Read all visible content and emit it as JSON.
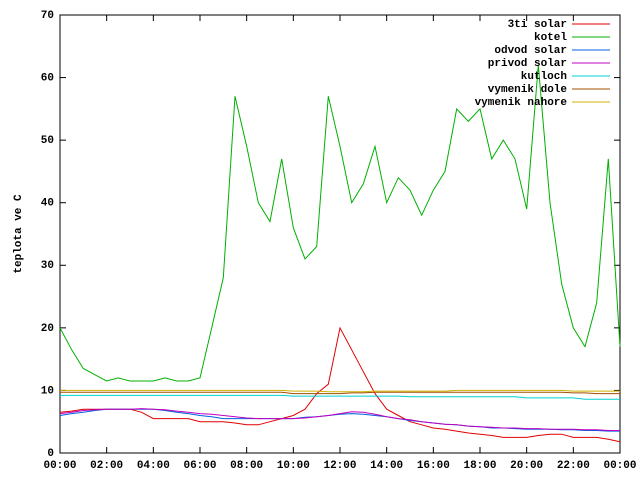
{
  "chart_data": {
    "type": "line",
    "y_label": "teplota ve C",
    "x": [
      0,
      0.5,
      1,
      1.5,
      2,
      2.5,
      3,
      3.5,
      4,
      4.5,
      5,
      5.5,
      6,
      6.5,
      7,
      7.5,
      8,
      8.5,
      9,
      9.5,
      10,
      10.5,
      11,
      11.5,
      12,
      12.5,
      13,
      13.5,
      14,
      14.5,
      15,
      15.5,
      16,
      16.5,
      17,
      17.5,
      18,
      18.5,
      19,
      19.5,
      20,
      20.5,
      21,
      21.5,
      22,
      22.5,
      23,
      23.5,
      24
    ],
    "xlim": [
      0,
      24
    ],
    "xticks": [
      {
        "value": 0,
        "label": "00:00"
      },
      {
        "value": 2,
        "label": "02:00"
      },
      {
        "value": 4,
        "label": "04:00"
      },
      {
        "value": 6,
        "label": "06:00"
      },
      {
        "value": 8,
        "label": "08:00"
      },
      {
        "value": 10,
        "label": "10:00"
      },
      {
        "value": 12,
        "label": "12:00"
      },
      {
        "value": 14,
        "label": "14:00"
      },
      {
        "value": 16,
        "label": "16:00"
      },
      {
        "value": 18,
        "label": "18:00"
      },
      {
        "value": 20,
        "label": "20:00"
      },
      {
        "value": 22,
        "label": "22:00"
      },
      {
        "value": 24,
        "label": "00:00"
      }
    ],
    "ylim": [
      0,
      70
    ],
    "yticks": [
      0,
      10,
      20,
      30,
      40,
      50,
      60,
      70
    ],
    "legend": "top-right",
    "series": [
      {
        "name": "3ti solar",
        "color": "#e00000",
        "values": [
          6.5,
          6.7,
          7,
          7,
          7,
          7,
          7,
          6.5,
          5.5,
          5.5,
          5.5,
          5.5,
          5,
          5,
          5,
          4.8,
          4.5,
          4.5,
          5,
          5.5,
          6,
          7,
          9.5,
          11,
          20,
          16.5,
          13,
          9.5,
          7,
          6,
          5,
          4.5,
          4,
          3.8,
          3.5,
          3.2,
          3,
          2.8,
          2.5,
          2.5,
          2.5,
          2.8,
          3,
          3,
          2.5,
          2.5,
          2.5,
          2.2,
          1.8
        ]
      },
      {
        "name": "kotel",
        "color": "#00b000",
        "values": [
          20,
          16.5,
          13.5,
          12.5,
          11.5,
          12,
          11.5,
          11.5,
          11.5,
          12,
          11.5,
          11.5,
          12,
          20,
          28,
          57,
          49,
          40,
          37,
          47,
          36,
          31,
          33,
          57,
          49,
          40,
          43,
          49,
          40,
          44,
          42,
          38,
          42,
          45,
          55,
          53,
          55,
          47,
          50,
          47,
          39,
          62,
          40,
          27,
          20,
          17,
          24,
          47,
          17
        ]
      },
      {
        "name": "odvod solar",
        "color": "#0060e0",
        "values": [
          6,
          6.3,
          6.5,
          6.8,
          7,
          7,
          7,
          7,
          7,
          6.8,
          6.5,
          6.3,
          6,
          5.8,
          5.5,
          5.5,
          5.5,
          5.5,
          5.5,
          5.5,
          5.5,
          5.7,
          5.8,
          6,
          6.2,
          6.3,
          6.2,
          6,
          5.8,
          5.5,
          5.2,
          5,
          4.8,
          4.6,
          4.5,
          4.3,
          4.2,
          4,
          4,
          3.9,
          3.8,
          3.8,
          3.8,
          3.7,
          3.7,
          3.6,
          3.6,
          3.5,
          3.5
        ]
      },
      {
        "name": "privod solar",
        "color": "#c000c0",
        "values": [
          6.3,
          6.5,
          6.8,
          6.9,
          7,
          7,
          7,
          7.1,
          7,
          6.9,
          6.7,
          6.5,
          6.3,
          6.2,
          6,
          5.8,
          5.6,
          5.5,
          5.5,
          5.5,
          5.5,
          5.6,
          5.8,
          6,
          6.3,
          6.6,
          6.5,
          6.2,
          5.8,
          5.5,
          5.3,
          5,
          4.8,
          4.6,
          4.5,
          4.3,
          4.2,
          4.1,
          4,
          4,
          3.9,
          3.9,
          3.8,
          3.8,
          3.8,
          3.7,
          3.7,
          3.6,
          3.6
        ]
      },
      {
        "name": "kutloch",
        "color": "#00d0d0",
        "values": [
          9.2,
          9.2,
          9.2,
          9.2,
          9.2,
          9.2,
          9.2,
          9.2,
          9.2,
          9.2,
          9.2,
          9.2,
          9.2,
          9.2,
          9.2,
          9.2,
          9.2,
          9.2,
          9.2,
          9.2,
          9.1,
          9.1,
          9.1,
          9.1,
          9.1,
          9.1,
          9.1,
          9.1,
          9.1,
          9.1,
          9,
          9,
          9,
          9,
          9,
          9,
          9,
          9,
          9,
          9,
          8.8,
          8.8,
          8.8,
          8.8,
          8.8,
          8.6,
          8.6,
          8.6,
          8.6
        ]
      },
      {
        "name": "vymenik dole",
        "color": "#a05000",
        "values": [
          9.7,
          9.7,
          9.7,
          9.7,
          9.7,
          9.7,
          9.7,
          9.7,
          9.7,
          9.7,
          9.7,
          9.7,
          9.7,
          9.7,
          9.7,
          9.7,
          9.7,
          9.7,
          9.7,
          9.7,
          9.5,
          9.5,
          9.5,
          9.5,
          9.5,
          9.6,
          9.6,
          9.7,
          9.7,
          9.7,
          9.7,
          9.7,
          9.7,
          9.7,
          9.7,
          9.7,
          9.7,
          9.7,
          9.7,
          9.7,
          9.7,
          9.7,
          9.7,
          9.7,
          9.6,
          9.6,
          9.5,
          9.5,
          9.5
        ]
      },
      {
        "name": "vymenik nahore",
        "color": "#d0b000",
        "values": [
          10,
          10,
          10,
          10,
          10,
          10,
          10,
          10,
          10,
          10,
          10,
          10,
          10,
          10,
          10,
          10,
          10,
          10,
          10,
          10,
          9.9,
          9.9,
          9.9,
          9.8,
          9.8,
          9.8,
          9.8,
          9.9,
          9.9,
          9.9,
          9.9,
          9.9,
          9.9,
          9.9,
          10,
          10,
          10,
          10,
          10,
          10,
          10,
          10,
          10,
          10,
          9.9,
          9.9,
          9.9,
          9.9,
          9.9
        ]
      }
    ]
  }
}
